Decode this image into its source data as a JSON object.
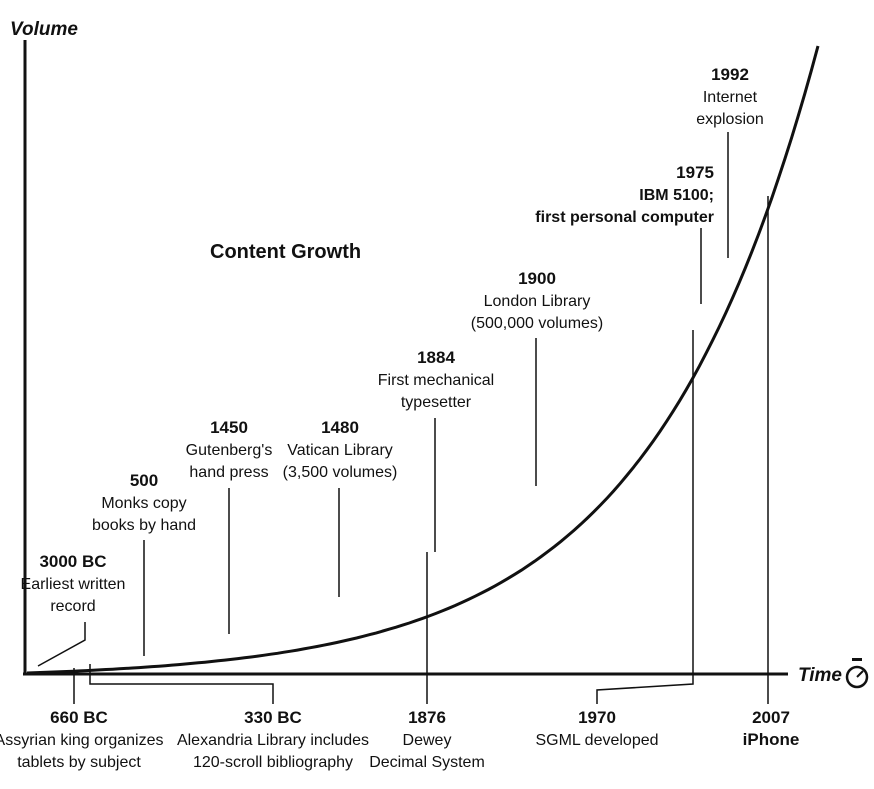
{
  "chart_data": {
    "type": "line",
    "title": "Content Growth",
    "xlabel": "Time",
    "ylabel": "Volume",
    "grid": false,
    "legend": "none",
    "curve": "exponential",
    "events_above": [
      {
        "year": "3000 BC",
        "lines": [
          "Earliest written",
          "record"
        ]
      },
      {
        "year": "500",
        "lines": [
          "Monks copy",
          "books by hand"
        ]
      },
      {
        "year": "1450",
        "lines": [
          "Gutenberg's",
          "hand press"
        ]
      },
      {
        "year": "1480",
        "lines": [
          "Vatican Library",
          "(3,500 volumes)"
        ]
      },
      {
        "year": "1884",
        "lines": [
          "First mechanical",
          "typesetter"
        ]
      },
      {
        "year": "1900",
        "lines": [
          "London Library",
          "(500,000 volumes)"
        ]
      },
      {
        "year": "1975",
        "lines": [
          "IBM 5100;",
          "first personal computer"
        ],
        "bold": true
      },
      {
        "year": "1992",
        "lines": [
          "Internet",
          "explosion"
        ]
      }
    ],
    "events_below": [
      {
        "year": "660 BC",
        "lines": [
          "Assyrian king organizes",
          "tablets by subject"
        ]
      },
      {
        "year": "330 BC",
        "lines": [
          "Alexandria Library includes",
          "120-scroll bibliography"
        ]
      },
      {
        "year": "1876",
        "lines": [
          "Dewey",
          "Decimal System"
        ]
      },
      {
        "year": "1970",
        "lines": [
          "SGML developed"
        ]
      },
      {
        "year": "2007",
        "lines": [
          "iPhone"
        ],
        "bold": true
      }
    ]
  },
  "icons": {
    "time_axis": "stopwatch-icon"
  }
}
